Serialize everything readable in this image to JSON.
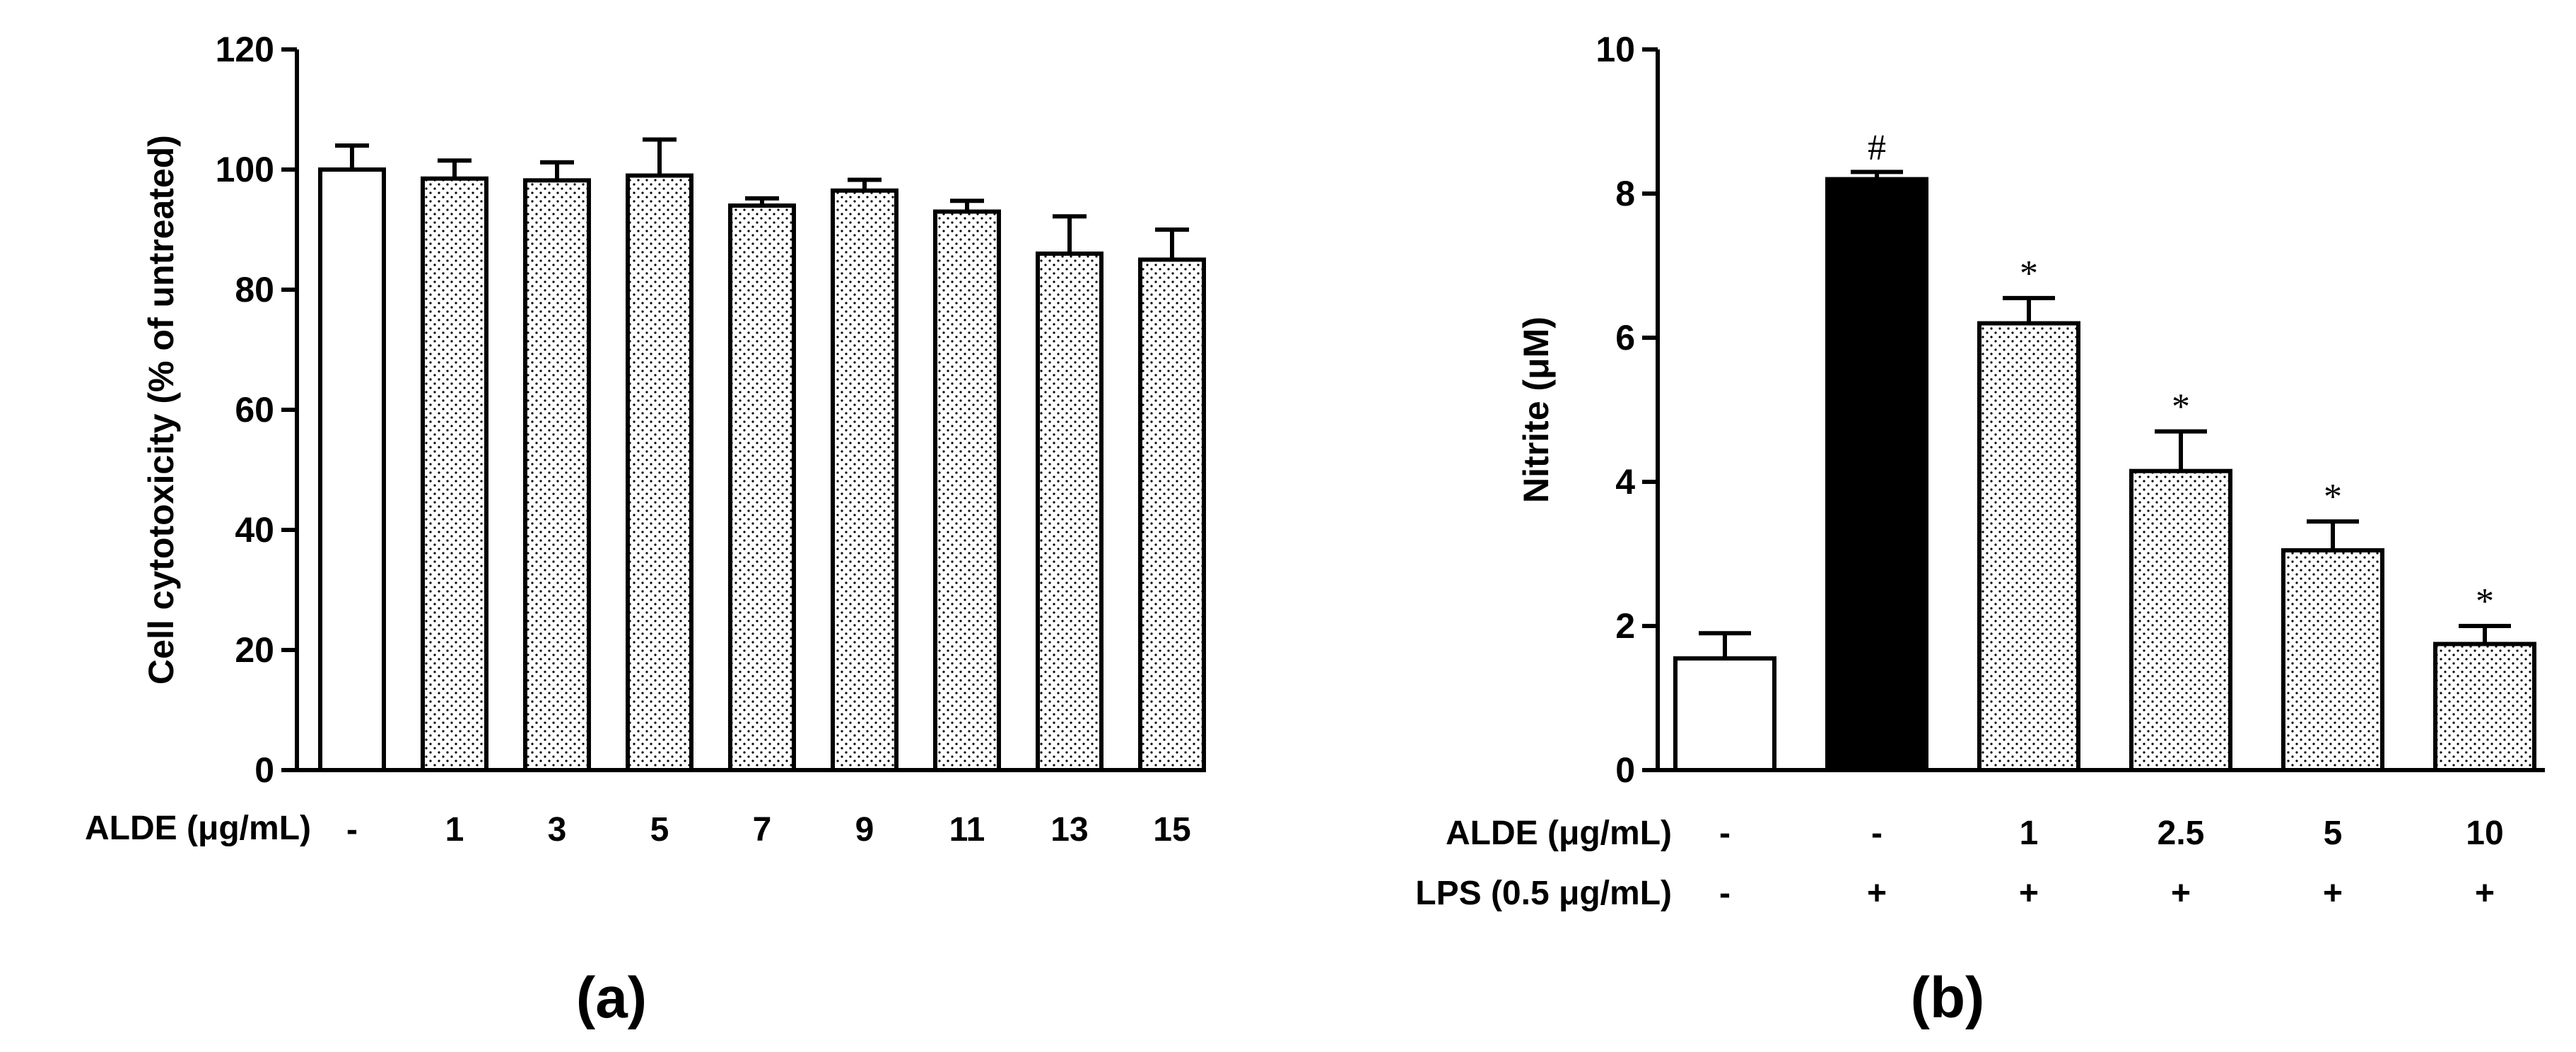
{
  "chart_data": [
    {
      "type": "bar",
      "panel_label": "(a)",
      "ylabel": "Cell cytotoxicity (% of untreated)",
      "ylim": [
        0,
        120
      ],
      "yticks": [
        0,
        20,
        40,
        60,
        80,
        100,
        120
      ],
      "row_labels": [
        "ALDE (μg/mL)"
      ],
      "categories": [
        "-",
        "1",
        "3",
        "5",
        "7",
        "9",
        "11",
        "13",
        "15"
      ],
      "values": [
        100,
        98.5,
        98.2,
        99,
        94,
        96.5,
        93,
        86,
        85
      ],
      "errors": [
        4,
        3,
        3,
        6,
        1.2,
        1.8,
        1.8,
        6.2,
        5
      ],
      "fills": [
        "white",
        "dotted",
        "dotted",
        "dotted",
        "dotted",
        "dotted",
        "dotted",
        "dotted",
        "dotted"
      ],
      "grid": false
    },
    {
      "type": "bar",
      "panel_label": "(b)",
      "ylabel": "Nitrite  (μM)",
      "ylim": [
        0,
        10
      ],
      "yticks": [
        0,
        2,
        4,
        6,
        8,
        10
      ],
      "row_labels": [
        "ALDE (μg/mL)",
        "LPS (0.5 μg/mL)"
      ],
      "categories": [
        "-",
        "-",
        "1",
        "2.5",
        "5",
        "10"
      ],
      "lps": [
        "-",
        "+",
        "+",
        "+",
        "+",
        "+"
      ],
      "values": [
        1.55,
        8.2,
        6.2,
        4.15,
        3.05,
        1.75
      ],
      "errors": [
        0.35,
        0.1,
        0.35,
        0.55,
        0.4,
        0.25
      ],
      "annotations": [
        "",
        "#",
        "*",
        "*",
        "*",
        "*"
      ],
      "fills": [
        "white",
        "black",
        "dotted",
        "dotted",
        "dotted",
        "dotted"
      ],
      "grid": false
    }
  ]
}
